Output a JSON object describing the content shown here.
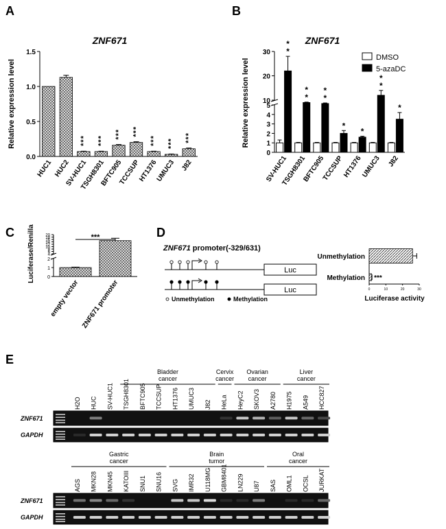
{
  "panels": {
    "A": {
      "letter": "A"
    },
    "B": {
      "letter": "B"
    },
    "C": {
      "letter": "C"
    },
    "D": {
      "letter": "D"
    },
    "E": {
      "letter": "E"
    }
  },
  "chart_data": [
    {
      "panel": "A",
      "type": "bar",
      "title": "ZNF671",
      "ylabel": "Relative expression level",
      "categories": [
        "HUC1",
        "HUC2",
        "SV-HUC1",
        "TSGH8301",
        "BFTC905",
        "TCCSUP",
        "HT1376",
        "UMUC3",
        "J82"
      ],
      "values": [
        1.0,
        1.13,
        0.07,
        0.07,
        0.16,
        0.2,
        0.07,
        0.03,
        0.11
      ],
      "errors": [
        0.0,
        0.03,
        0.005,
        0.005,
        0.01,
        0.01,
        0.005,
        0.005,
        0.01
      ],
      "annotations": [
        "",
        "",
        "***",
        "***",
        "***",
        "***",
        "***",
        "***",
        "***"
      ],
      "ylim": [
        0,
        1.5
      ],
      "yticks": [
        "0.0",
        "0.5",
        "1.0",
        "1.5"
      ]
    },
    {
      "panel": "B",
      "type": "bar",
      "title": "ZNF671",
      "ylabel": "Relative expression level",
      "categories": [
        "SV-HUC1",
        "TSGH8301",
        "BFTC905",
        "TCCSUP",
        "HT1376",
        "UMUC3",
        "J82"
      ],
      "series": [
        {
          "name": "DMSO",
          "values": [
            1.0,
            1.0,
            1.0,
            1.0,
            1.0,
            1.0,
            1.0
          ],
          "errors": [
            0.3,
            0.05,
            0.05,
            0.05,
            0.05,
            0.05,
            0.05
          ]
        },
        {
          "name": "5-azaDC",
          "values": [
            22.0,
            7.5,
            6.5,
            2.0,
            1.6,
            12.0,
            3.5
          ],
          "errors": [
            6.0,
            0.5,
            0.6,
            0.3,
            0.1,
            2.0,
            0.7
          ]
        }
      ],
      "annotations": [
        "**",
        "**",
        "**",
        "*",
        "*",
        "**",
        "*"
      ],
      "axis_break": [
        5,
        10
      ],
      "yticks_lower": [
        "0",
        "1",
        "2",
        "3",
        "4",
        "5"
      ],
      "yticks_upper": [
        "10",
        "20",
        "30"
      ]
    },
    {
      "panel": "C",
      "type": "bar",
      "ylabel": "Luciferase/Renilla",
      "categories": [
        "empty vector",
        "ZNF671 promoter"
      ],
      "values": [
        1.0,
        15.0
      ],
      "errors": [
        0.05,
        2.0
      ],
      "significance": "***",
      "axis_break": [
        2,
        4
      ],
      "yticks_lower": [
        "0",
        "1",
        "2"
      ],
      "yticks_upper": [
        "4",
        "6",
        "8",
        "10",
        "12",
        "14",
        "16",
        "18",
        "20"
      ]
    },
    {
      "panel": "D",
      "type": "bar",
      "orientation": "horizontal",
      "title_italic": "ZNF671",
      "title_rest": " promoter(-329/631)",
      "xlabel": "Luciferase activity",
      "categories": [
        "Unmethylation",
        "Methylation"
      ],
      "values": [
        26.0,
        1.5
      ],
      "errors": [
        2.5,
        0.2
      ],
      "significance": [
        "",
        "***"
      ],
      "xlim": [
        0,
        30
      ],
      "xticks": [
        "0",
        "10",
        "20",
        "30"
      ],
      "box_label": "Luc",
      "legend": {
        "open": "Unmethylation",
        "filled": "Methylation"
      }
    }
  ],
  "gel": {
    "group_labels_row1": [
      {
        "line1": "Bladder",
        "line2": "cancer"
      },
      {
        "line1": "Cervix",
        "line2": "cancer"
      },
      {
        "line1": "Ovarian",
        "line2": "cancer"
      },
      {
        "line1": "Liver",
        "line2": "cancer"
      }
    ],
    "lanes_row1": [
      "H2O",
      "HUC",
      "SV-HUC1",
      "TSGH8301",
      "BFTC905",
      "TCCSUP",
      "HT1376",
      "UMUC3",
      "J82",
      "HeLa",
      "HeyC2",
      "SKOV3",
      "A2780",
      "H1975",
      "A549",
      "HCC827"
    ],
    "group_labels_row2": [
      {
        "line1": "Gastric",
        "line2": "cancer"
      },
      {
        "line1": "Brain",
        "line2": "tumor"
      },
      {
        "line1": "Oral",
        "line2": "cancer"
      }
    ],
    "lanes_row2": [
      "AGS",
      "MKN28",
      "MKN45",
      "KATOIII",
      "SNU1",
      "SNU16",
      "SVG",
      "IMR32",
      "U118MG",
      "GBM8401",
      "LN229",
      "U87",
      "SAS",
      "OML1",
      "OCSL",
      "JURKAT"
    ],
    "gene_labels": [
      "ZNF671",
      "GAPDH"
    ]
  }
}
